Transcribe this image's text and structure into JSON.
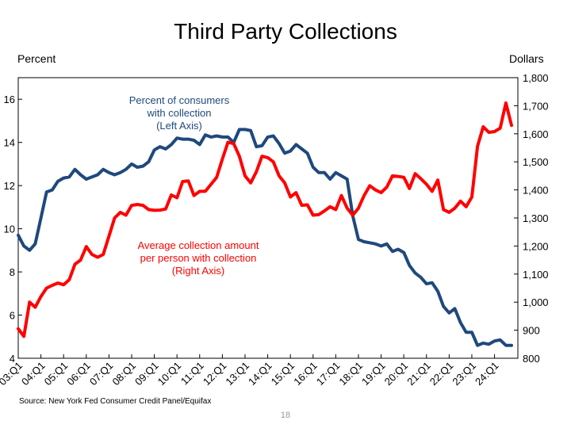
{
  "page": {
    "title": "Third Party Collections",
    "left_axis_label": "Percent",
    "right_axis_label": "Dollars",
    "source": "Source: New York Fed Consumer Credit Panel/Equifax",
    "page_number": "18"
  },
  "chart_data": {
    "type": "line",
    "title": "Third Party Collections",
    "xlabel": "",
    "x_tick_labels": [
      "03:Q1",
      "04:Q1",
      "05:Q1",
      "06:Q1",
      "07:Q1",
      "08:Q1",
      "09:Q1",
      "10:Q1",
      "11:Q1",
      "12:Q1",
      "13:Q1",
      "14:Q1",
      "15:Q1",
      "16:Q1",
      "17:Q1",
      "18:Q1",
      "19:Q1",
      "20:Q1",
      "21:Q1",
      "22:Q1",
      "23:Q1",
      "24:Q1"
    ],
    "x_range": [
      "2003:Q1",
      "2024:Q4"
    ],
    "left_axis": {
      "label": "Percent",
      "ylim": [
        4,
        17
      ],
      "ticks": [
        "4",
        "6",
        "8",
        "10",
        "12",
        "14",
        "16"
      ]
    },
    "right_axis": {
      "label": "Dollars",
      "ylim": [
        800,
        1800
      ],
      "ticks": [
        "800",
        "900",
        "1,000",
        "1,100",
        "1,200",
        "1,300",
        "1,400",
        "1,500",
        "1,600",
        "1,700",
        "1,800"
      ]
    },
    "grid": false,
    "series": [
      {
        "name": "Percent of consumers with collection (Left Axis)",
        "axis": "left",
        "color": "#1f497d",
        "annotation": [
          "Percent of consumers",
          "with collection",
          "(Left Axis)"
        ],
        "values": [
          9.7,
          9.2,
          9.0,
          9.3,
          10.5,
          11.7,
          11.8,
          12.2,
          12.35,
          12.4,
          12.75,
          12.5,
          12.3,
          12.4,
          12.5,
          12.75,
          12.6,
          12.5,
          12.6,
          12.75,
          13.0,
          12.85,
          12.9,
          13.1,
          13.65,
          13.8,
          13.7,
          13.9,
          14.2,
          14.15,
          14.15,
          14.1,
          13.9,
          14.35,
          14.25,
          14.3,
          14.25,
          14.25,
          14.0,
          14.6,
          14.6,
          14.55,
          13.8,
          13.85,
          14.25,
          14.3,
          13.95,
          13.5,
          13.6,
          13.9,
          13.7,
          13.5,
          12.85,
          12.6,
          12.6,
          12.3,
          12.6,
          12.45,
          12.3,
          10.6,
          9.5,
          9.4,
          9.35,
          9.3,
          9.2,
          9.3,
          8.95,
          9.05,
          8.9,
          8.3,
          7.95,
          7.75,
          7.45,
          7.5,
          7.1,
          6.4,
          6.1,
          6.3,
          5.65,
          5.2,
          5.2,
          4.6,
          4.7,
          4.65,
          4.8,
          4.85,
          4.6,
          4.6
        ]
      },
      {
        "name": "Average collection amount per person with collection (Right Axis)",
        "axis": "right",
        "color": "#ff0000",
        "annotation": [
          "Average collection amount",
          "per person with collection",
          "(Right Axis)"
        ],
        "values": [
          905,
          878,
          1000,
          982,
          1020,
          1050,
          1060,
          1068,
          1062,
          1080,
          1135,
          1150,
          1198,
          1170,
          1160,
          1170,
          1235,
          1300,
          1320,
          1310,
          1345,
          1348,
          1345,
          1330,
          1327,
          1328,
          1332,
          1382,
          1372,
          1430,
          1432,
          1380,
          1395,
          1395,
          1420,
          1445,
          1510,
          1570,
          1565,
          1520,
          1450,
          1425,
          1465,
          1520,
          1515,
          1500,
          1450,
          1425,
          1375,
          1390,
          1345,
          1347,
          1310,
          1312,
          1325,
          1340,
          1330,
          1380,
          1335,
          1310,
          1335,
          1380,
          1415,
          1400,
          1390,
          1410,
          1450,
          1448,
          1445,
          1405,
          1458,
          1440,
          1420,
          1395,
          1435,
          1330,
          1320,
          1335,
          1360,
          1340,
          1375,
          1555,
          1625,
          1605,
          1608,
          1620,
          1710,
          1630
        ]
      }
    ]
  }
}
